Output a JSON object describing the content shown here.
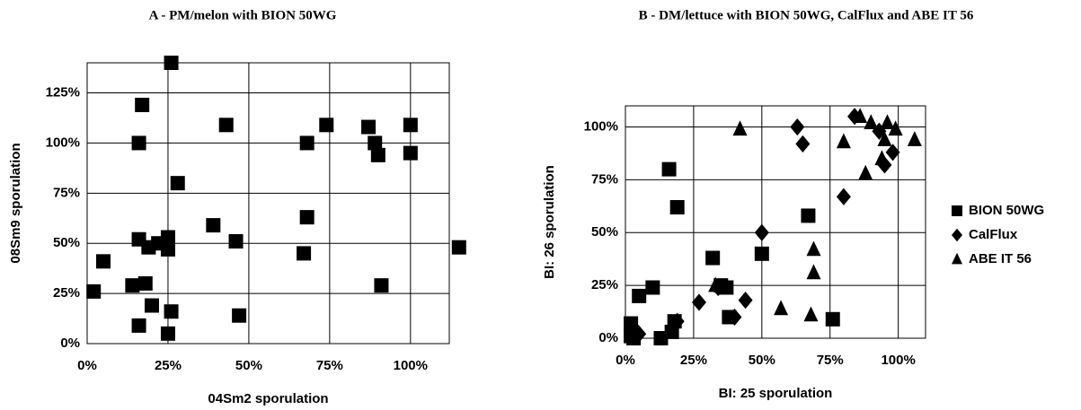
{
  "chart_data": [
    {
      "type": "scatter",
      "title": "A - PM/melon with BION 50WG",
      "x_label": "04Sm2 sporulation",
      "y_label": "08Sm9 sporulation",
      "xlim": [
        0,
        112
      ],
      "ylim": [
        0,
        140
      ],
      "grid": true,
      "xticks": [
        {
          "value": 0,
          "label": "0%"
        },
        {
          "value": 25,
          "label": "25%"
        },
        {
          "value": 50,
          "label": "50%"
        },
        {
          "value": 75,
          "label": "75%"
        },
        {
          "value": 100,
          "label": "100%"
        }
      ],
      "yticks": [
        {
          "value": 0,
          "label": "0%"
        },
        {
          "value": 25,
          "label": "25%"
        },
        {
          "value": 50,
          "label": "50%"
        },
        {
          "value": 75,
          "label": "75%"
        },
        {
          "value": 100,
          "label": "100%"
        },
        {
          "value": 125,
          "label": "125%"
        }
      ],
      "series": [
        {
          "color": "#000000",
          "marker": "square",
          "x": [
            26,
            17,
            16,
            28,
            43,
            68,
            74,
            87,
            89,
            90,
            100,
            100,
            16,
            19,
            22,
            25,
            25,
            39,
            46,
            67,
            68,
            115,
            2,
            5,
            14,
            18,
            20,
            16,
            26,
            25,
            47,
            91
          ],
          "values": [
            140,
            119,
            100,
            80,
            109,
            100,
            109,
            108,
            100,
            94,
            109,
            95,
            52,
            48,
            50,
            47,
            53,
            59,
            51,
            45,
            63,
            48,
            26,
            41,
            29,
            30,
            19,
            9,
            16,
            5,
            14,
            29
          ]
        }
      ]
    },
    {
      "type": "scatter",
      "title": "B - DM/lettuce with BION 50WG, CalFlux and ABE IT 56",
      "x_label": "BI: 25 sporulation",
      "y_label": "BI: 26 sporulation",
      "xlim": [
        0,
        110
      ],
      "ylim": [
        0,
        110
      ],
      "grid": true,
      "legend": "right",
      "xticks": [
        {
          "value": 0,
          "label": "0%"
        },
        {
          "value": 25,
          "label": "25%"
        },
        {
          "value": 50,
          "label": "50%"
        },
        {
          "value": 75,
          "label": "75%"
        },
        {
          "value": 100,
          "label": "100%"
        }
      ],
      "yticks": [
        {
          "value": 0,
          "label": "0%"
        },
        {
          "value": 25,
          "label": "25%"
        },
        {
          "value": 50,
          "label": "50%"
        },
        {
          "value": 75,
          "label": "75%"
        },
        {
          "value": 100,
          "label": "100%"
        }
      ],
      "series": [
        {
          "name": "BION 50WG",
          "color": "#000000",
          "marker": "square",
          "x": [
            2,
            2,
            3,
            5,
            10,
            13,
            17,
            18,
            16,
            19,
            32,
            35,
            37,
            38,
            50,
            67,
            76
          ],
          "values": [
            7,
            1,
            0,
            20,
            24,
            0,
            3,
            8,
            80,
            62,
            38,
            25,
            24,
            10,
            40,
            58,
            9
          ]
        },
        {
          "name": "CalFlux",
          "color": "#000000",
          "marker": "diamond",
          "x": [
            3,
            5,
            19,
            27,
            34,
            40,
            44,
            50,
            63,
            65,
            80,
            84,
            93,
            95,
            98
          ],
          "values": [
            5,
            2,
            8,
            17,
            24,
            10,
            18,
            50,
            100,
            92,
            67,
            105,
            98,
            82,
            88
          ]
        },
        {
          "name": "ABE IT 56",
          "color": "#000000",
          "marker": "triangle",
          "x": [
            42,
            33,
            57,
            68,
            69,
            69,
            80,
            86,
            88,
            90,
            94,
            95,
            96,
            99,
            106
          ],
          "values": [
            99,
            25,
            14,
            11,
            31,
            42,
            93,
            105,
            78,
            102,
            85,
            94,
            102,
            99,
            94
          ]
        }
      ]
    }
  ]
}
